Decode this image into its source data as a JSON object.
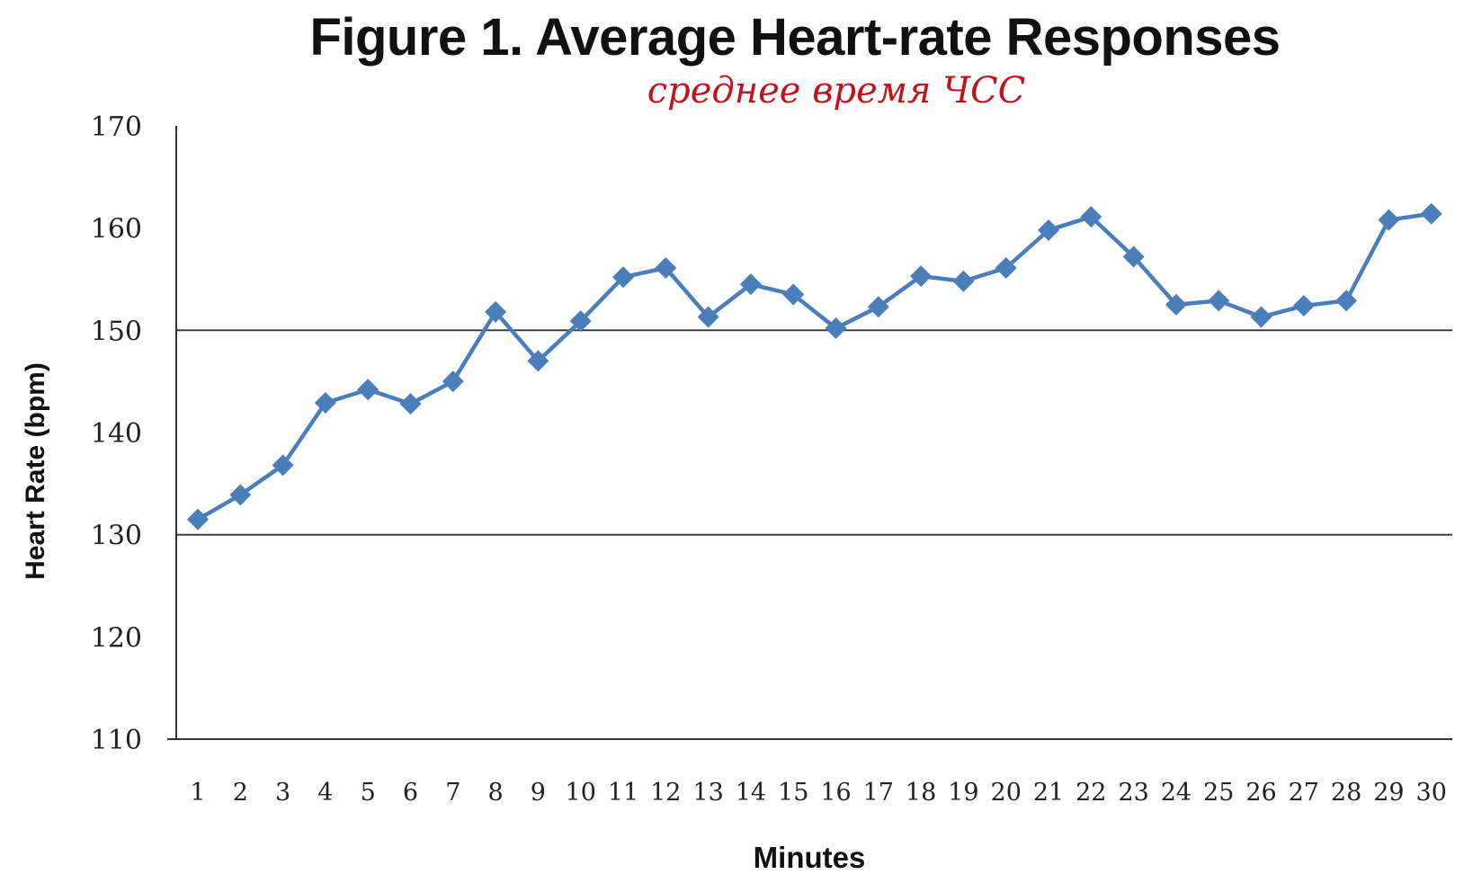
{
  "chart_data": {
    "type": "line",
    "title": "Figure 1. Average Heart-rate Responses",
    "subtitle": "среднее время ЧСС",
    "xlabel": "Minutes",
    "ylabel": "Heart Rate (bpm)",
    "ylim": [
      110,
      170
    ],
    "yticks": [
      110,
      120,
      130,
      140,
      150,
      160,
      170
    ],
    "gridlines": [
      130,
      150
    ],
    "categories": [
      "1",
      "2",
      "3",
      "4",
      "5",
      "6",
      "7",
      "8",
      "9",
      "10",
      "11",
      "12",
      "13",
      "14",
      "15",
      "16",
      "17",
      "18",
      "19",
      "20",
      "21",
      "22",
      "23",
      "24",
      "25",
      "26",
      "27",
      "28",
      "29",
      "30"
    ],
    "series": [
      {
        "values": [
          131.5,
          133.9,
          136.8,
          142.9,
          144.2,
          142.8,
          145.0,
          151.8,
          147.0,
          150.9,
          155.2,
          156.1,
          151.3,
          154.5,
          153.5,
          150.2,
          152.3,
          155.3,
          154.8,
          156.1,
          159.8,
          161.1,
          157.2,
          152.5,
          152.9,
          151.3,
          152.4,
          152.9,
          160.8,
          161.4
        ],
        "color": "#4a7ebb"
      }
    ],
    "grid": "horizontal-partial",
    "legend": "none"
  }
}
